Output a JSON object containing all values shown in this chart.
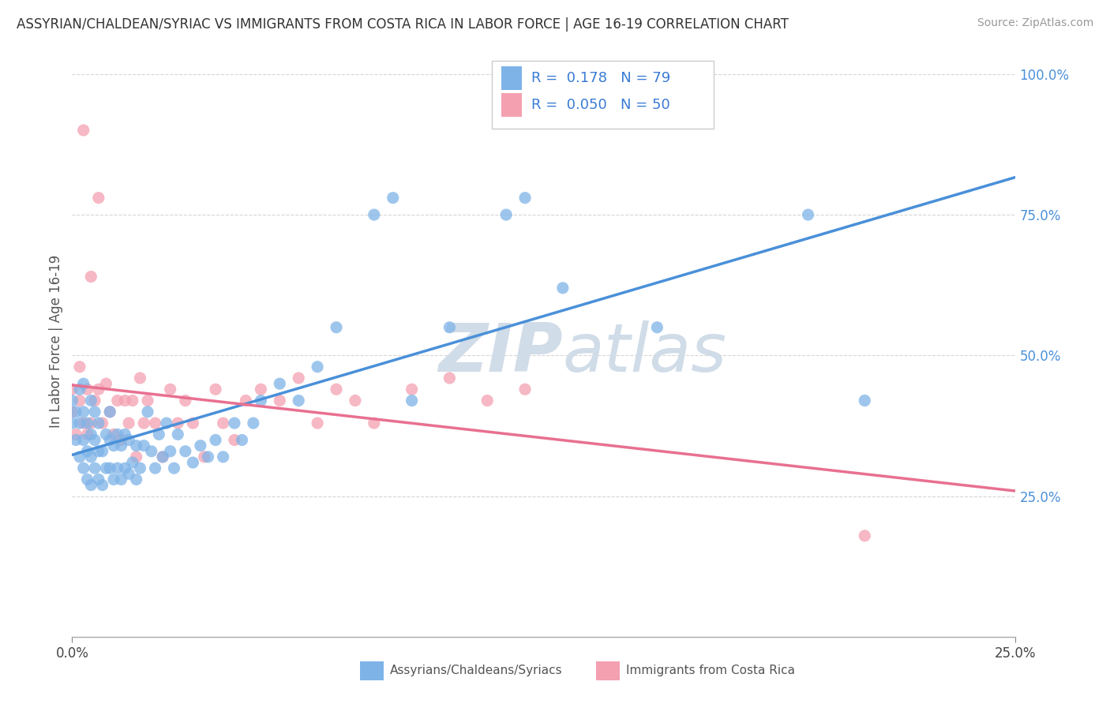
{
  "title": "ASSYRIAN/CHALDEAN/SYRIAC VS IMMIGRANTS FROM COSTA RICA IN LABOR FORCE | AGE 16-19 CORRELATION CHART",
  "source": "Source: ZipAtlas.com",
  "ylabel": "In Labor Force | Age 16-19",
  "blue_color": "#7EB3E8",
  "pink_color": "#F4A0B0",
  "trend_blue_color": "#4A90D9",
  "trend_pink_color": "#E87090",
  "watermark_color": "#D0DCE8",
  "blue_R": 0.178,
  "pink_R": 0.05,
  "blue_N": 79,
  "pink_N": 50,
  "legend_label_blue": "Assyrians/Chaldeans/Syriacs",
  "legend_label_pink": "Immigrants from Costa Rica",
  "blue_x": [
    0.0,
    0.0,
    0.001,
    0.001,
    0.002,
    0.002,
    0.002,
    0.003,
    0.003,
    0.003,
    0.003,
    0.004,
    0.004,
    0.004,
    0.005,
    0.005,
    0.005,
    0.005,
    0.006,
    0.006,
    0.006,
    0.007,
    0.007,
    0.007,
    0.008,
    0.008,
    0.009,
    0.009,
    0.01,
    0.01,
    0.01,
    0.011,
    0.011,
    0.012,
    0.012,
    0.013,
    0.013,
    0.014,
    0.014,
    0.015,
    0.015,
    0.016,
    0.017,
    0.017,
    0.018,
    0.019,
    0.02,
    0.021,
    0.022,
    0.023,
    0.024,
    0.025,
    0.026,
    0.027,
    0.028,
    0.03,
    0.032,
    0.034,
    0.036,
    0.038,
    0.04,
    0.043,
    0.045,
    0.048,
    0.05,
    0.055,
    0.06,
    0.065,
    0.07,
    0.08,
    0.085,
    0.09,
    0.1,
    0.115,
    0.12,
    0.13,
    0.155,
    0.195,
    0.21
  ],
  "blue_y": [
    0.38,
    0.42,
    0.35,
    0.4,
    0.32,
    0.38,
    0.44,
    0.3,
    0.35,
    0.4,
    0.45,
    0.28,
    0.33,
    0.38,
    0.27,
    0.32,
    0.36,
    0.42,
    0.3,
    0.35,
    0.4,
    0.28,
    0.33,
    0.38,
    0.27,
    0.33,
    0.3,
    0.36,
    0.3,
    0.35,
    0.4,
    0.28,
    0.34,
    0.3,
    0.36,
    0.28,
    0.34,
    0.3,
    0.36,
    0.29,
    0.35,
    0.31,
    0.28,
    0.34,
    0.3,
    0.34,
    0.4,
    0.33,
    0.3,
    0.36,
    0.32,
    0.38,
    0.33,
    0.3,
    0.36,
    0.33,
    0.31,
    0.34,
    0.32,
    0.35,
    0.32,
    0.38,
    0.35,
    0.38,
    0.42,
    0.45,
    0.42,
    0.48,
    0.55,
    0.75,
    0.78,
    0.42,
    0.55,
    0.75,
    0.78,
    0.62,
    0.55,
    0.75,
    0.42
  ],
  "pink_x": [
    0.0,
    0.0,
    0.001,
    0.002,
    0.002,
    0.003,
    0.003,
    0.004,
    0.004,
    0.005,
    0.005,
    0.006,
    0.007,
    0.007,
    0.008,
    0.009,
    0.01,
    0.011,
    0.012,
    0.013,
    0.014,
    0.015,
    0.016,
    0.017,
    0.018,
    0.019,
    0.02,
    0.022,
    0.024,
    0.026,
    0.028,
    0.03,
    0.032,
    0.035,
    0.038,
    0.04,
    0.043,
    0.046,
    0.05,
    0.055,
    0.06,
    0.065,
    0.07,
    0.075,
    0.08,
    0.09,
    0.1,
    0.11,
    0.12,
    0.21
  ],
  "pink_y": [
    0.4,
    0.44,
    0.36,
    0.42,
    0.48,
    0.38,
    0.9,
    0.44,
    0.36,
    0.38,
    0.64,
    0.42,
    0.78,
    0.44,
    0.38,
    0.45,
    0.4,
    0.36,
    0.42,
    0.35,
    0.42,
    0.38,
    0.42,
    0.32,
    0.46,
    0.38,
    0.42,
    0.38,
    0.32,
    0.44,
    0.38,
    0.42,
    0.38,
    0.32,
    0.44,
    0.38,
    0.35,
    0.42,
    0.44,
    0.42,
    0.46,
    0.38,
    0.44,
    0.42,
    0.38,
    0.44,
    0.46,
    0.42,
    0.44,
    0.18
  ]
}
